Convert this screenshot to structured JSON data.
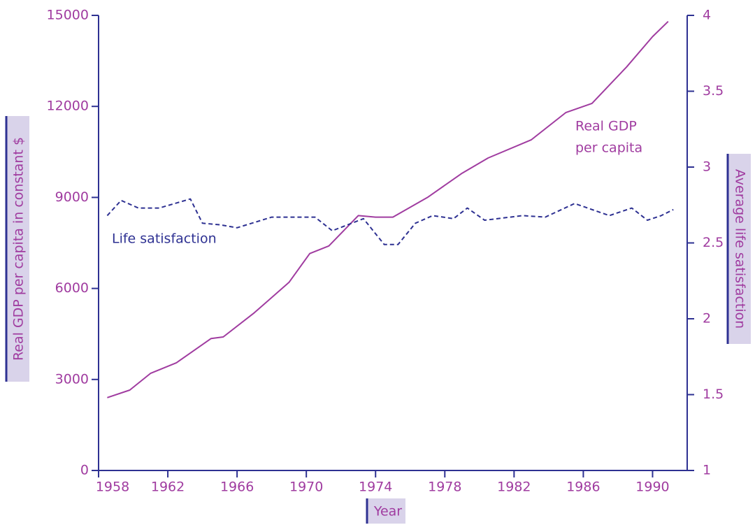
{
  "chart_data": {
    "type": "line",
    "xlabel": "Year",
    "ylabel": "Real GDP per capita in constant $",
    "y2label": "Average life satisfaction",
    "annotations": [
      "Real GDP",
      "per capita",
      "Life satisfaction"
    ],
    "xlim": [
      1958,
      1992
    ],
    "xticks": [
      1958,
      1962,
      1966,
      1970,
      1974,
      1978,
      1982,
      1986,
      1990
    ],
    "ylim": [
      0,
      15000
    ],
    "yticks": [
      0,
      3000,
      6000,
      9000,
      12000,
      15000
    ],
    "y2lim": [
      1,
      4
    ],
    "y2ticks": [
      1,
      1.5,
      2,
      2.5,
      3,
      3.5,
      4
    ],
    "series": [
      {
        "name": "Real GDP per capita",
        "color": "#a03ca0",
        "dash": false,
        "x": [
          1958.5,
          1959.8,
          1961,
          1962.5,
          1964.5,
          1965.2,
          1967,
          1969,
          1970.2,
          1971.3,
          1973,
          1974,
          1975,
          1977,
          1979,
          1980.5,
          1983,
          1985,
          1986.5,
          1988.5,
          1990,
          1990.9
        ],
        "values": [
          2400,
          2650,
          3200,
          3550,
          4350,
          4400,
          5200,
          6200,
          7150,
          7400,
          8400,
          8350,
          8350,
          9000,
          9800,
          10300,
          10900,
          11800,
          12100,
          13300,
          14300,
          14800
        ]
      },
      {
        "name": "Life satisfaction",
        "color": "#2e3192",
        "dash": true,
        "axis": "y2",
        "x": [
          1958.5,
          1959.3,
          1960.3,
          1961.5,
          1963.3,
          1964,
          1965,
          1966,
          1968,
          1970.5,
          1971.5,
          1973.3,
          1974.5,
          1975.3,
          1976.3,
          1977.3,
          1978.5,
          1979.3,
          1980.3,
          1982.5,
          1983.8,
          1985.5,
          1987.5,
          1988.8,
          1989.7,
          1990.5,
          1991.2
        ],
        "values": [
          2.68,
          2.78,
          2.73,
          2.73,
          2.79,
          2.63,
          2.62,
          2.6,
          2.67,
          2.67,
          2.58,
          2.66,
          2.49,
          2.49,
          2.63,
          2.68,
          2.66,
          2.73,
          2.65,
          2.68,
          2.67,
          2.76,
          2.68,
          2.73,
          2.65,
          2.68,
          2.72
        ]
      }
    ]
  }
}
